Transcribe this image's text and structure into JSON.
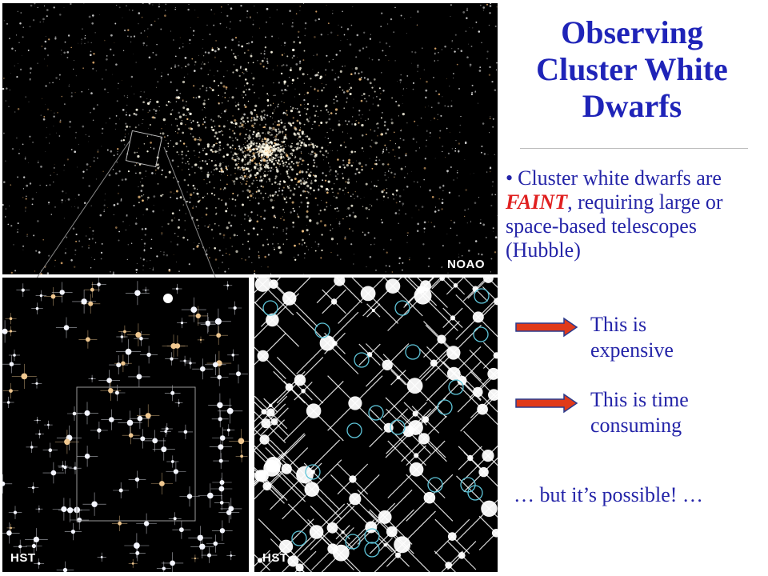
{
  "slide": {
    "title": "Observing Cluster White Dwarfs",
    "bullet": {
      "before": "Cluster white dwarfs are ",
      "emphasis": "FAINT",
      "after": ", requiring large or space-based telescopes (Hubble)"
    },
    "note1": "This is expensive",
    "note2": "This is time consuming",
    "footer": "… but it’s possible! …"
  },
  "images": {
    "top_credit": "NOAO",
    "left_credit": "HST",
    "right_credit": "HST"
  },
  "colors": {
    "title": "#1f24b8",
    "text": "#2424a8",
    "emphasis": "#e02020",
    "arrow": "#e03a1a"
  }
}
